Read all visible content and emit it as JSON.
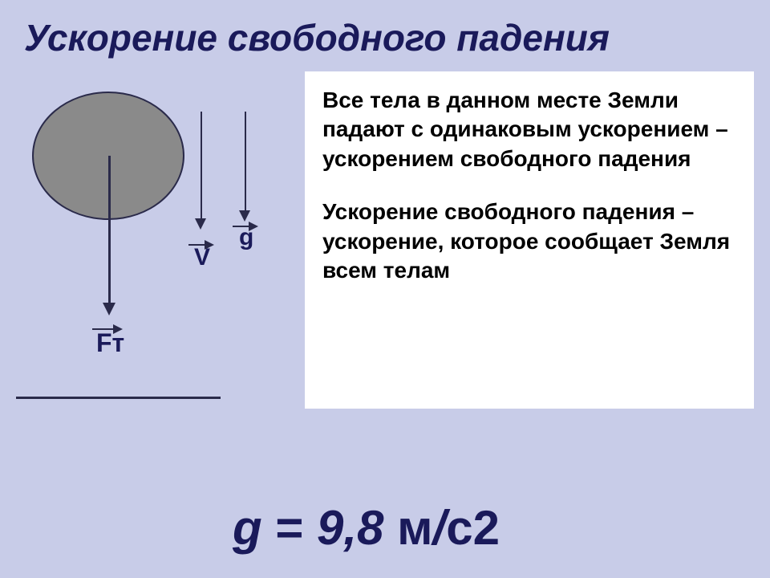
{
  "title": "Ускорение свободного падения",
  "diagram": {
    "labels": {
      "v": "V",
      "g": "g",
      "ft": "Fт"
    },
    "colors": {
      "background": "#c8cce8",
      "ellipse_fill": "#8a8a8a",
      "ellipse_border": "#2a2a4a",
      "arrow_color": "#2a2a4a",
      "title_color": "#1a1a5a",
      "text_color": "#000000",
      "textbox_bg": "#ffffff"
    }
  },
  "text": {
    "paragraph1": "Все тела в данном месте Земли падают с одинаковым ускорением – ускорением свободного падения",
    "paragraph2": "Ускорение свободного падения – ускорение, которое сообщает Земля всем телам"
  },
  "formula": {
    "symbol": "g",
    "equals": " = ",
    "value": "9,8",
    "unit_m": " м",
    "unit_slash": "/",
    "unit_s2": "с2"
  },
  "typography": {
    "title_fontsize": 46,
    "body_fontsize": 28,
    "label_fontsize": 30,
    "formula_fontsize": 60
  }
}
